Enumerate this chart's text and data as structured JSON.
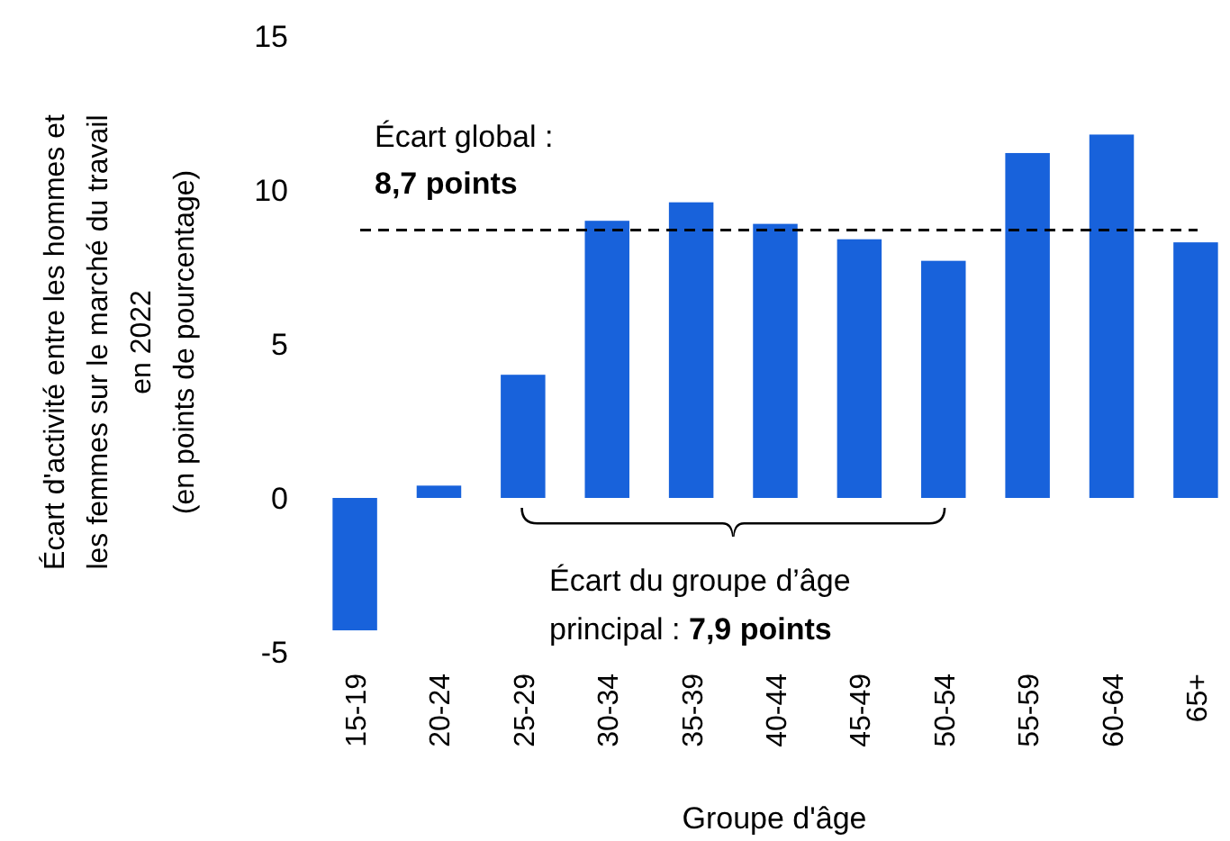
{
  "chart_data": {
    "type": "bar",
    "xlabel": "Groupe d'âge",
    "ylabel": "Écart d'activité entre les hommes et\nles femmes sur le marché du travail\nen 2022\n(en points de pourcentage)",
    "categories": [
      "15-19",
      "20-24",
      "25-29",
      "30-34",
      "35-39",
      "40-44",
      "45-49",
      "50-54",
      "55-59",
      "60-64",
      "65+"
    ],
    "values": [
      -4.3,
      0.4,
      4.0,
      9.0,
      9.6,
      8.9,
      8.4,
      7.7,
      11.2,
      11.8,
      8.3
    ],
    "color": "#1862db",
    "ylim": [
      -5,
      15
    ],
    "yticks": [
      -5,
      0,
      5,
      10,
      15
    ],
    "ref_lines": [
      {
        "axis": "y",
        "value": 8.7,
        "label": "Écart global : 8,7 points",
        "line_style": "dashed",
        "color": "#000000"
      }
    ],
    "annotations": [
      "Écart du groupe d’âge principal : 7,9 points"
    ]
  }
}
